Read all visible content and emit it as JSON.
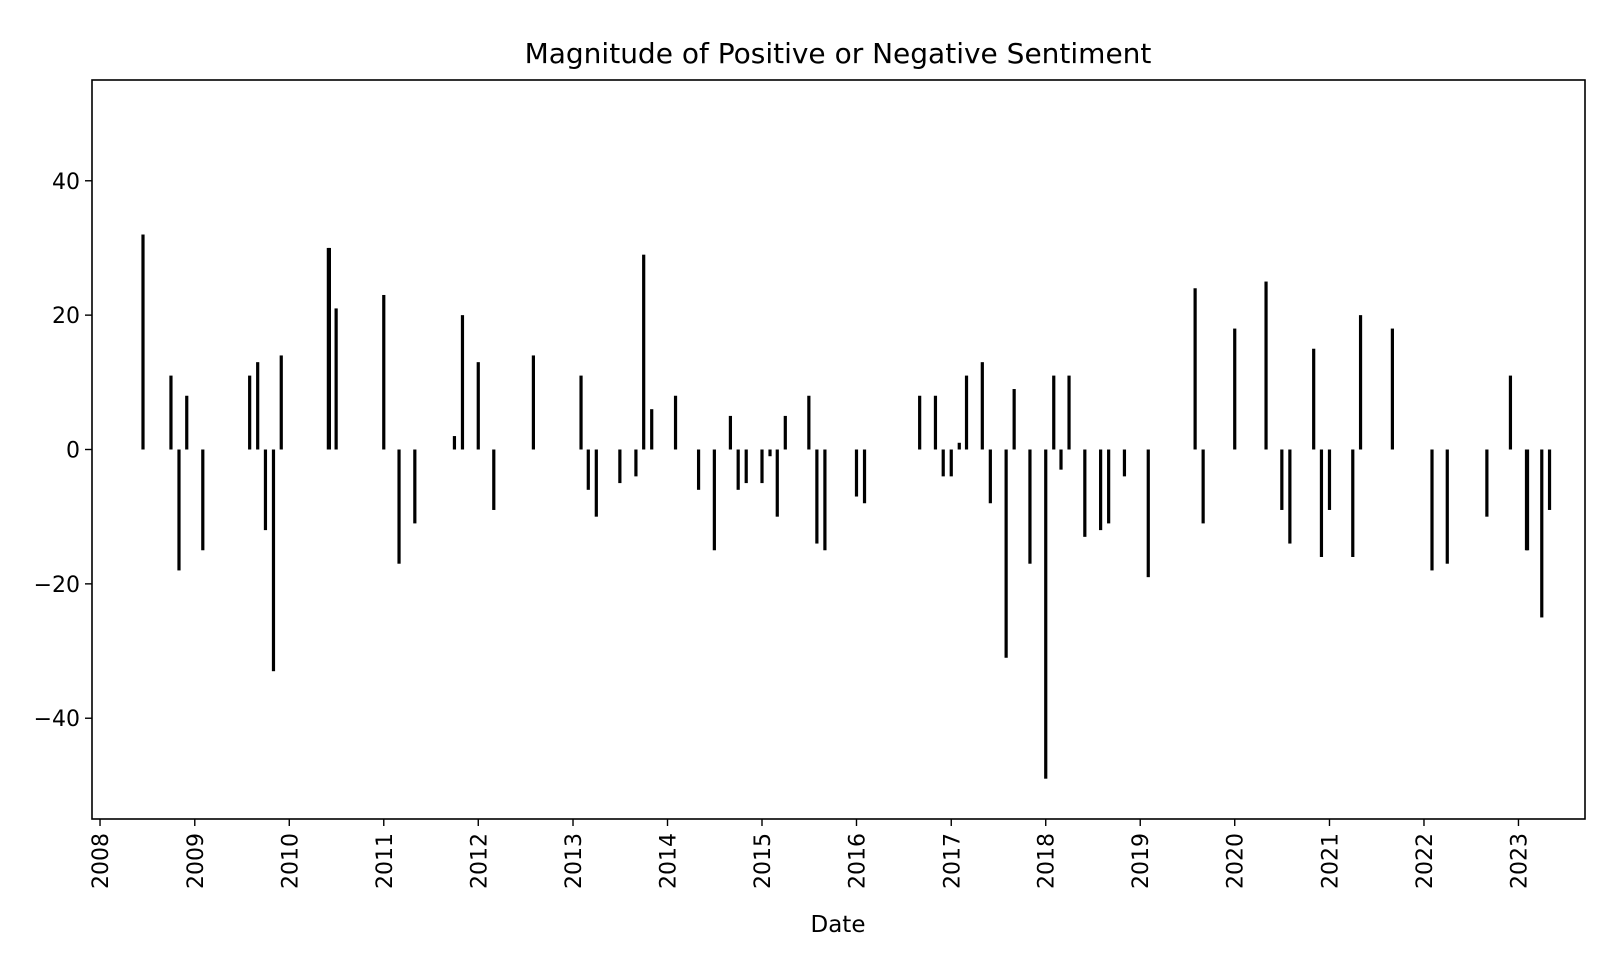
{
  "chart_data": {
    "type": "bar",
    "title": "Magnitude of Positive or Negative Sentiment",
    "xlabel": "Date",
    "ylabel": "",
    "x_axis_type": "date",
    "xlim": [
      "2007-12-01",
      "2023-09-15"
    ],
    "ylim": [
      -55,
      55
    ],
    "yticks": [
      -40,
      -20,
      0,
      20,
      40
    ],
    "xticks": [
      "2008",
      "2009",
      "2010",
      "2011",
      "2012",
      "2013",
      "2014",
      "2015",
      "2016",
      "2017",
      "2018",
      "2019",
      "2020",
      "2021",
      "2022",
      "2023"
    ],
    "grid": false,
    "bar_color": "#000000",
    "series": [
      {
        "x": [
          "2008-06-15",
          "2008-10-01",
          "2008-11-01",
          "2008-12-01",
          "2009-02-01",
          "2009-08-01",
          "2009-09-01",
          "2009-10-01",
          "2009-11-01",
          "2009-12-01",
          "2010-06-01",
          "2010-06-05",
          "2010-07-01",
          "2011-01-01",
          "2011-03-01",
          "2011-05-01",
          "2011-10-01",
          "2011-11-01",
          "2012-01-01",
          "2012-03-01",
          "2012-08-01",
          "2013-02-01",
          "2013-03-01",
          "2013-04-01",
          "2013-07-01",
          "2013-09-01",
          "2013-10-01",
          "2013-11-01",
          "2014-02-01",
          "2014-05-01",
          "2014-07-01",
          "2014-09-01",
          "2014-10-01",
          "2014-11-01",
          "2015-01-01",
          "2015-02-01",
          "2015-03-01",
          "2015-04-01",
          "2015-07-01",
          "2015-08-01",
          "2015-09-01",
          "2016-01-01",
          "2016-02-01",
          "2016-09-01",
          "2016-11-01",
          "2016-12-01",
          "2017-01-01",
          "2017-02-01",
          "2017-03-01",
          "2017-05-01",
          "2017-06-01",
          "2017-08-01",
          "2017-09-01",
          "2017-11-01",
          "2018-01-01",
          "2018-02-01",
          "2018-03-01",
          "2018-04-01",
          "2018-06-01",
          "2018-08-01",
          "2018-09-01",
          "2018-11-01",
          "2019-02-01",
          "2019-08-01",
          "2019-09-01",
          "2020-01-01",
          "2020-05-01",
          "2020-07-01",
          "2020-08-01",
          "2020-11-01",
          "2020-12-01",
          "2021-01-01",
          "2021-04-01",
          "2021-05-01",
          "2021-09-01",
          "2022-02-01",
          "2022-04-01",
          "2022-09-01",
          "2022-12-01",
          "2023-02-01",
          "2023-02-05",
          "2023-04-01",
          "2023-05-01"
        ],
        "values": [
          32,
          11,
          -18,
          8,
          -15,
          11,
          13,
          -12,
          -33,
          14,
          30,
          30,
          21,
          23,
          -17,
          -11,
          2,
          20,
          13,
          -9,
          14,
          11,
          -6,
          -10,
          -5,
          -4,
          29,
          6,
          8,
          -6,
          -15,
          5,
          -6,
          -5,
          -5,
          -1,
          -10,
          5,
          8,
          -14,
          -15,
          -7,
          -8,
          8,
          8,
          -4,
          -4,
          1,
          11,
          13,
          -8,
          -31,
          9,
          -17,
          -49,
          11,
          -3,
          11,
          -13,
          -12,
          -11,
          -4,
          -19,
          24,
          -11,
          18,
          25,
          -9,
          -14,
          15,
          -16,
          -9,
          -16,
          20,
          18,
          -18,
          -17,
          -10,
          11,
          -15,
          -15,
          -25,
          -9
        ]
      }
    ]
  }
}
